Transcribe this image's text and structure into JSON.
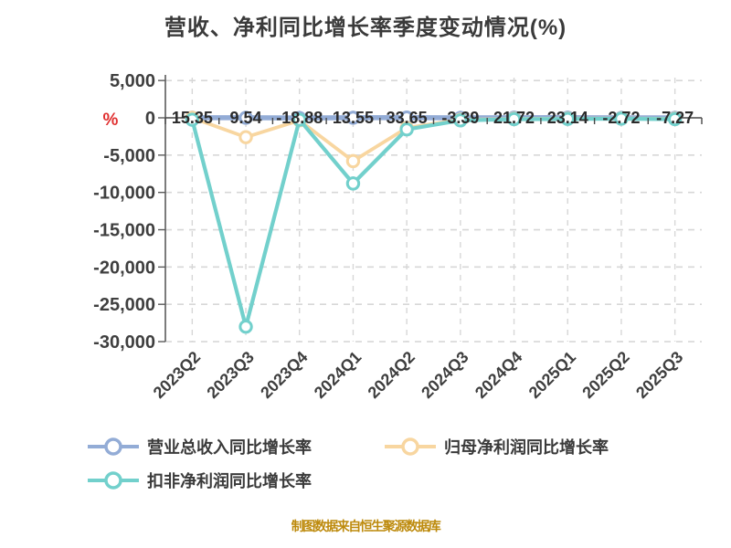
{
  "title": "营收、净利同比增长率季度变动情况(%)",
  "source_note": "制图数据来自恒生聚源数据库",
  "y_axis": {
    "unit_label": "%",
    "unit_color": "#e03030",
    "ticks": [
      "5,000",
      "0",
      "-5,000",
      "-10,000",
      "-15,000",
      "-20,000",
      "-25,000",
      "-30,000"
    ]
  },
  "chart_data": {
    "type": "line",
    "title": "营收、净利同比增长率季度变动情况(%)",
    "categories": [
      "2023Q2",
      "2023Q3",
      "2023Q4",
      "2024Q1",
      "2024Q2",
      "2024Q3",
      "2024Q4",
      "2025Q1",
      "2025Q2",
      "2025Q3"
    ],
    "xlabel": "",
    "ylabel": "%",
    "ylim": [
      -30000,
      5000
    ],
    "y_tick_step": 5000,
    "grid": true,
    "gridline_style": "dashed",
    "legend_position": "bottom-left",
    "marker": "open-circle",
    "series": [
      {
        "name": "营业总收入同比增长率",
        "color": "#93acd6",
        "values": [
          15.35,
          9.54,
          -18.88,
          13.55,
          33.65,
          -3.39,
          21.72,
          23.14,
          -2.72,
          -7.27
        ],
        "labels": [
          "15.35",
          "9.54",
          "-18.88",
          "13.55",
          "33.65",
          "-3.39",
          "21.72",
          "23.14",
          "-2.72",
          "-7.27"
        ]
      },
      {
        "name": "归母净利润同比增长率",
        "color": "#f8d6a0",
        "values": [
          0,
          -2600,
          -350,
          -5800,
          -1350,
          -250,
          -120,
          -100,
          -80,
          -120
        ]
      },
      {
        "name": "扣非净利润同比增长率",
        "color": "#72d0cc",
        "values": [
          -250,
          -28000,
          -250,
          -8800,
          -1550,
          -350,
          -180,
          -150,
          -120,
          -180
        ]
      }
    ]
  }
}
